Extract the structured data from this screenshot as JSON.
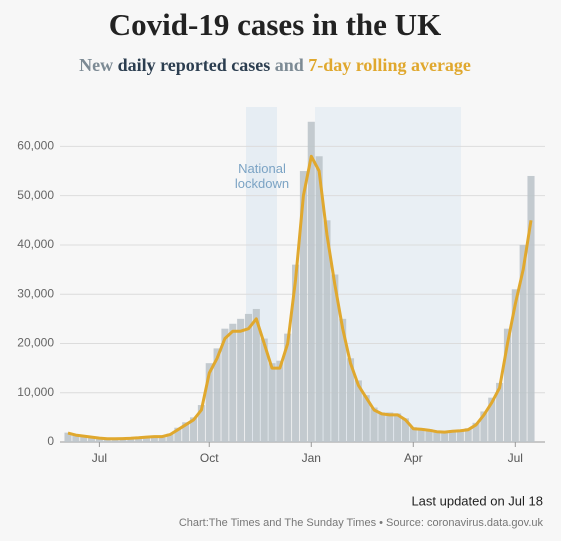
{
  "chart_data": {
    "type": "bar",
    "title": "Covid-19 cases in the UK",
    "subtitle_prefix": "New",
    "subtitle_joiner": "and",
    "annotation": "National lockdown",
    "updated": "Last updated on Jul 18",
    "source": "Chart:The Times and The Sunday Times • Source: coronavirus.data.gov.uk",
    "categories": [
      null,
      null,
      null,
      null,
      "Jul",
      null,
      null,
      null,
      null,
      null,
      null,
      null,
      null,
      null,
      null,
      null,
      null,
      null,
      "Oct",
      null,
      null,
      null,
      null,
      null,
      null,
      null,
      null,
      null,
      null,
      null,
      null,
      "Jan",
      null,
      null,
      null,
      null,
      null,
      null,
      null,
      null,
      null,
      null,
      null,
      null,
      "Apr",
      null,
      null,
      null,
      null,
      null,
      null,
      null,
      null,
      null,
      null,
      null,
      null,
      "Jul",
      null,
      null
    ],
    "series": [
      {
        "name": "daily reported cases",
        "type": "bar",
        "color": "#bcc4ca",
        "values": [
          1900,
          1500,
          1300,
          1100,
          900,
          700,
          700,
          750,
          800,
          900,
          1100,
          1200,
          1200,
          1700,
          2900,
          4000,
          5000,
          7500,
          16000,
          19000,
          23000,
          24000,
          25000,
          26000,
          27000,
          21000,
          16000,
          16500,
          22000,
          36000,
          55000,
          65000,
          58000,
          45000,
          34000,
          25000,
          17000,
          12500,
          9500,
          7000,
          6000,
          6000,
          5800,
          4800,
          3000,
          2800,
          2600,
          2300,
          2200,
          2400,
          2500,
          2800,
          3900,
          6200,
          9000,
          12000,
          23000,
          31000,
          40000,
          54000
        ]
      },
      {
        "name": "7-day rolling average",
        "type": "line",
        "color": "#e0a82e",
        "values": [
          1800,
          1400,
          1200,
          1000,
          800,
          650,
          650,
          700,
          750,
          850,
          1000,
          1100,
          1100,
          1500,
          2500,
          3500,
          4500,
          6500,
          14000,
          17000,
          21000,
          22500,
          22500,
          23000,
          25000,
          20000,
          15000,
          15000,
          20000,
          33000,
          50000,
          58000,
          55000,
          42000,
          32000,
          23000,
          16000,
          11500,
          9000,
          6500,
          5700,
          5500,
          5500,
          4500,
          2700,
          2600,
          2400,
          2100,
          2000,
          2200,
          2300,
          2500,
          3500,
          5500,
          8000,
          11000,
          20000,
          28000,
          35000,
          45000
        ]
      }
    ],
    "ylim": [
      0,
      68000
    ],
    "yticks": [
      0,
      {
        "value": 10000,
        "label": "10,000"
      },
      {
        "value": 20000,
        "label": "20,000"
      },
      {
        "value": 30000,
        "label": "30,000"
      },
      {
        "value": 40000,
        "label": "40,000"
      },
      {
        "value": 50000,
        "label": "50,000"
      },
      {
        "value": 60000,
        "label": "60,000"
      }
    ],
    "grid": true
  }
}
